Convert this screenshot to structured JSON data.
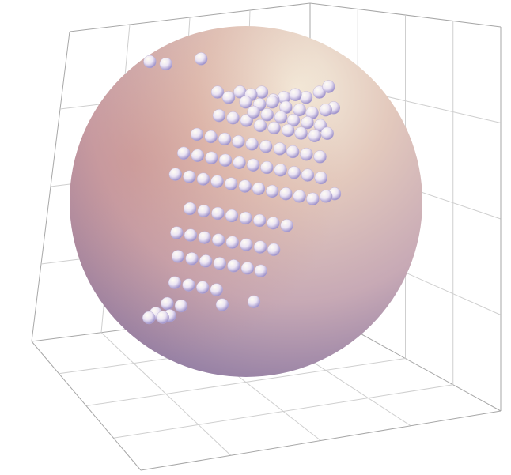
{
  "chart_data": {
    "type": "scatter",
    "projection": "3d",
    "title": "",
    "xlabel": "",
    "ylabel": "",
    "zlabel": "",
    "axes_box": true,
    "grid": true,
    "tick_labels": false,
    "legend": "none",
    "sphere": {
      "present": true,
      "shading_colors": [
        "#f4e6d6",
        "#d9b7a6",
        "#c3a4b4",
        "#7a6a9e"
      ]
    },
    "marker": {
      "shape": "sphere",
      "colors": [
        "#fefbf0",
        "#e9e2f3",
        "#9a8dc8"
      ]
    },
    "series": [
      {
        "points": [
          [
            0.11,
            0.44,
            0.98
          ],
          [
            0.18,
            0.46,
            0.97
          ],
          [
            0.34,
            0.45,
            0.99
          ],
          [
            0.4,
            0.55,
            0.86
          ],
          [
            0.45,
            0.55,
            0.84
          ],
          [
            0.5,
            0.56,
            0.86
          ],
          [
            0.55,
            0.56,
            0.85
          ],
          [
            0.6,
            0.55,
            0.86
          ],
          [
            0.65,
            0.56,
            0.83
          ],
          [
            0.7,
            0.55,
            0.84
          ],
          [
            0.75,
            0.56,
            0.85
          ],
          [
            0.8,
            0.55,
            0.84
          ],
          [
            0.86,
            0.55,
            0.86
          ],
          [
            0.9,
            0.56,
            0.88
          ],
          [
            0.52,
            0.6,
            0.82
          ],
          [
            0.58,
            0.62,
            0.81
          ],
          [
            0.64,
            0.6,
            0.82
          ],
          [
            0.7,
            0.61,
            0.8
          ],
          [
            0.76,
            0.62,
            0.79
          ],
          [
            0.82,
            0.6,
            0.78
          ],
          [
            0.88,
            0.61,
            0.79
          ],
          [
            0.92,
            0.58,
            0.8
          ],
          [
            0.55,
            0.64,
            0.78
          ],
          [
            0.61,
            0.65,
            0.77
          ],
          [
            0.67,
            0.66,
            0.76
          ],
          [
            0.73,
            0.64,
            0.75
          ],
          [
            0.79,
            0.66,
            0.74
          ],
          [
            0.85,
            0.65,
            0.73
          ],
          [
            0.4,
            0.6,
            0.77
          ],
          [
            0.46,
            0.62,
            0.76
          ],
          [
            0.52,
            0.63,
            0.75
          ],
          [
            0.58,
            0.64,
            0.73
          ],
          [
            0.64,
            0.66,
            0.72
          ],
          [
            0.7,
            0.68,
            0.71
          ],
          [
            0.76,
            0.67,
            0.7
          ],
          [
            0.82,
            0.68,
            0.69
          ],
          [
            0.88,
            0.66,
            0.7
          ],
          [
            0.3,
            0.6,
            0.7
          ],
          [
            0.36,
            0.62,
            0.69
          ],
          [
            0.42,
            0.64,
            0.68
          ],
          [
            0.48,
            0.65,
            0.67
          ],
          [
            0.54,
            0.66,
            0.66
          ],
          [
            0.6,
            0.68,
            0.65
          ],
          [
            0.66,
            0.7,
            0.64
          ],
          [
            0.72,
            0.69,
            0.63
          ],
          [
            0.78,
            0.7,
            0.62
          ],
          [
            0.84,
            0.71,
            0.61
          ],
          [
            0.24,
            0.6,
            0.63
          ],
          [
            0.3,
            0.62,
            0.62
          ],
          [
            0.36,
            0.64,
            0.61
          ],
          [
            0.42,
            0.66,
            0.6
          ],
          [
            0.48,
            0.68,
            0.59
          ],
          [
            0.54,
            0.7,
            0.58
          ],
          [
            0.6,
            0.71,
            0.57
          ],
          [
            0.66,
            0.72,
            0.56
          ],
          [
            0.72,
            0.73,
            0.55
          ],
          [
            0.78,
            0.74,
            0.54
          ],
          [
            0.84,
            0.74,
            0.53
          ],
          [
            0.2,
            0.62,
            0.55
          ],
          [
            0.26,
            0.64,
            0.54
          ],
          [
            0.32,
            0.66,
            0.53
          ],
          [
            0.38,
            0.68,
            0.52
          ],
          [
            0.44,
            0.7,
            0.51
          ],
          [
            0.5,
            0.72,
            0.5
          ],
          [
            0.56,
            0.73,
            0.49
          ],
          [
            0.62,
            0.74,
            0.48
          ],
          [
            0.68,
            0.75,
            0.47
          ],
          [
            0.74,
            0.76,
            0.46
          ],
          [
            0.8,
            0.76,
            0.45
          ],
          [
            0.86,
            0.76,
            0.46
          ],
          [
            0.9,
            0.75,
            0.47
          ],
          [
            0.26,
            0.66,
            0.42
          ],
          [
            0.32,
            0.68,
            0.41
          ],
          [
            0.38,
            0.7,
            0.4
          ],
          [
            0.44,
            0.72,
            0.39
          ],
          [
            0.5,
            0.74,
            0.38
          ],
          [
            0.56,
            0.76,
            0.37
          ],
          [
            0.62,
            0.77,
            0.36
          ],
          [
            0.68,
            0.78,
            0.35
          ],
          [
            0.2,
            0.66,
            0.33
          ],
          [
            0.26,
            0.68,
            0.32
          ],
          [
            0.32,
            0.7,
            0.31
          ],
          [
            0.38,
            0.72,
            0.3
          ],
          [
            0.44,
            0.74,
            0.29
          ],
          [
            0.5,
            0.76,
            0.28
          ],
          [
            0.56,
            0.78,
            0.27
          ],
          [
            0.62,
            0.79,
            0.26
          ],
          [
            0.2,
            0.7,
            0.24
          ],
          [
            0.26,
            0.72,
            0.23
          ],
          [
            0.32,
            0.74,
            0.22
          ],
          [
            0.38,
            0.76,
            0.21
          ],
          [
            0.44,
            0.78,
            0.2
          ],
          [
            0.5,
            0.8,
            0.19
          ],
          [
            0.56,
            0.8,
            0.18
          ],
          [
            0.18,
            0.74,
            0.14
          ],
          [
            0.24,
            0.76,
            0.13
          ],
          [
            0.3,
            0.78,
            0.12
          ],
          [
            0.36,
            0.8,
            0.11
          ],
          [
            0.14,
            0.78,
            0.06
          ],
          [
            0.2,
            0.8,
            0.05
          ],
          [
            0.08,
            0.84,
            0.02
          ],
          [
            0.14,
            0.86,
            0.01
          ],
          [
            0.4,
            0.7,
            0.06
          ],
          [
            0.54,
            0.72,
            0.07
          ],
          [
            0.04,
            0.9,
            0.0
          ],
          [
            0.1,
            0.92,
            0.0
          ]
        ]
      }
    ]
  }
}
